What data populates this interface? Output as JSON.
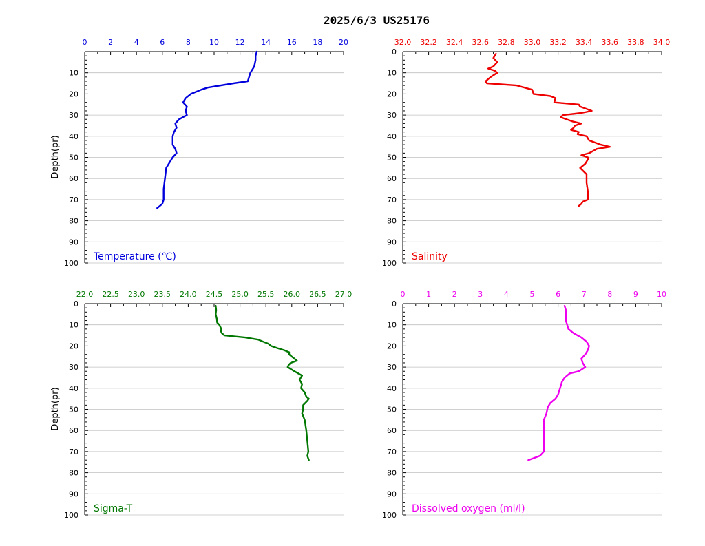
{
  "title": "2025/6/3  US25176",
  "chart_data": [
    {
      "type": "line",
      "label": "Temperature (℃)",
      "color": "#0000dd",
      "xlabel": "Temperature (℃)",
      "ylabel": "Depth(pr)",
      "xlim": [
        0,
        20
      ],
      "xticks": [
        "0",
        "2",
        "4",
        "6",
        "8",
        "10",
        "12",
        "14",
        "16",
        "18",
        "20"
      ],
      "ylim": [
        0,
        100
      ],
      "yticks": [
        "10",
        "20",
        "30",
        "40",
        "50",
        "60",
        "70",
        "80",
        "90",
        "100"
      ],
      "depth": [
        0,
        2,
        4,
        7,
        10,
        12,
        14,
        15,
        17,
        18,
        20,
        22,
        24,
        26,
        28,
        30,
        32,
        34,
        36,
        38,
        40,
        42,
        44,
        46,
        48,
        50,
        52,
        55,
        60,
        65,
        70,
        72,
        74
      ],
      "values": [
        13.3,
        13.2,
        13.2,
        13.1,
        12.8,
        12.7,
        12.6,
        11.5,
        9.5,
        9.0,
        8.2,
        7.8,
        7.6,
        7.9,
        7.8,
        7.9,
        7.3,
        7.0,
        7.1,
        6.9,
        6.8,
        6.8,
        6.8,
        7.0,
        7.1,
        6.8,
        6.6,
        6.3,
        6.2,
        6.1,
        6.1,
        6.0,
        5.6
      ]
    },
    {
      "type": "line",
      "label": "Salinity",
      "color": "#ee0000",
      "xlabel": "Salinity",
      "ylabel": "",
      "xlim": [
        32.0,
        34.0
      ],
      "xticks": [
        "32.0",
        "32.2",
        "32.4",
        "32.6",
        "32.8",
        "33.0",
        "33.2",
        "33.4",
        "33.6",
        "33.8",
        "34.0"
      ],
      "ylim": [
        0,
        100
      ],
      "yticks": [
        "0",
        "10",
        "20",
        "30",
        "40",
        "50",
        "60",
        "70",
        "80",
        "90",
        "100"
      ],
      "depth": [
        1,
        3,
        5,
        7,
        8,
        9,
        10,
        12,
        14,
        15,
        16,
        18,
        20,
        21,
        22,
        24,
        25,
        26,
        28,
        29,
        30,
        31,
        33,
        34,
        35,
        36,
        37,
        38,
        39,
        40,
        42,
        44,
        45,
        46,
        48,
        49,
        50,
        51,
        53,
        55,
        58,
        62,
        66,
        70,
        71,
        72,
        73
      ],
      "values": [
        32.72,
        32.7,
        32.73,
        32.7,
        32.66,
        32.71,
        32.73,
        32.68,
        32.64,
        32.65,
        32.88,
        33.0,
        33.01,
        33.14,
        33.18,
        33.17,
        33.36,
        33.37,
        33.46,
        33.38,
        33.24,
        33.22,
        33.31,
        33.38,
        33.33,
        33.32,
        33.3,
        33.36,
        33.35,
        33.42,
        33.44,
        33.53,
        33.6,
        33.5,
        33.44,
        33.38,
        33.43,
        33.43,
        33.41,
        33.37,
        33.42,
        33.42,
        33.43,
        33.43,
        33.39,
        33.38,
        33.36
      ]
    },
    {
      "type": "line",
      "label": "Sigma-T",
      "color": "#007700",
      "xlabel": "Sigma-T",
      "ylabel": "Depth(pr)",
      "xlim": [
        22.0,
        27.0
      ],
      "xticks": [
        "22.0",
        "22.5",
        "23.0",
        "23.5",
        "24.0",
        "24.5",
        "25.0",
        "25.5",
        "26.0",
        "26.5",
        "27.0"
      ],
      "ylim": [
        0,
        100
      ],
      "yticks": [
        "0",
        "10",
        "20",
        "30",
        "40",
        "50",
        "60",
        "70",
        "80",
        "90",
        "100"
      ],
      "depth": [
        1,
        3,
        5,
        7,
        9,
        10,
        12,
        13,
        14,
        15,
        16,
        17,
        18,
        19,
        20,
        21,
        22,
        23,
        24,
        25,
        26,
        27,
        28,
        29,
        30,
        32,
        34,
        36,
        38,
        40,
        42,
        44,
        45,
        46,
        48,
        50,
        52,
        55,
        60,
        65,
        70,
        72,
        74
      ],
      "values": [
        24.53,
        24.54,
        24.53,
        24.55,
        24.56,
        24.6,
        24.64,
        24.63,
        24.65,
        24.7,
        25.1,
        25.35,
        25.45,
        25.55,
        25.6,
        25.72,
        25.85,
        25.95,
        25.95,
        26.0,
        26.05,
        26.1,
        25.98,
        25.94,
        25.92,
        26.05,
        26.2,
        26.15,
        26.2,
        26.18,
        26.25,
        26.28,
        26.33,
        26.3,
        26.22,
        26.22,
        26.2,
        26.25,
        26.28,
        26.3,
        26.32,
        26.3,
        26.33
      ]
    },
    {
      "type": "line",
      "label": "Dissolved oxygen (ml/l)",
      "color": "#ee00ee",
      "xlabel": "Dissolved oxygen (ml/l)",
      "ylabel": "",
      "xlim": [
        0,
        10
      ],
      "xticks": [
        "0",
        "1",
        "2",
        "3",
        "4",
        "5",
        "6",
        "7",
        "8",
        "9",
        "10"
      ],
      "ylim": [
        0,
        100
      ],
      "yticks": [
        "0",
        "10",
        "20",
        "30",
        "40",
        "50",
        "60",
        "70",
        "80",
        "90",
        "100"
      ],
      "depth": [
        1,
        3,
        5,
        8,
        10,
        12,
        14,
        16,
        18,
        20,
        22,
        24,
        26,
        28,
        30,
        32,
        33,
        35,
        37,
        39,
        41,
        43,
        45,
        47,
        49,
        52,
        55,
        60,
        65,
        70,
        72,
        74
      ],
      "values": [
        6.25,
        6.3,
        6.3,
        6.3,
        6.35,
        6.4,
        6.6,
        6.9,
        7.1,
        7.2,
        7.15,
        7.05,
        6.9,
        6.95,
        7.05,
        6.8,
        6.45,
        6.25,
        6.15,
        6.1,
        6.05,
        6.0,
        5.9,
        5.7,
        5.6,
        5.55,
        5.45,
        5.45,
        5.45,
        5.45,
        5.3,
        4.85
      ]
    }
  ]
}
